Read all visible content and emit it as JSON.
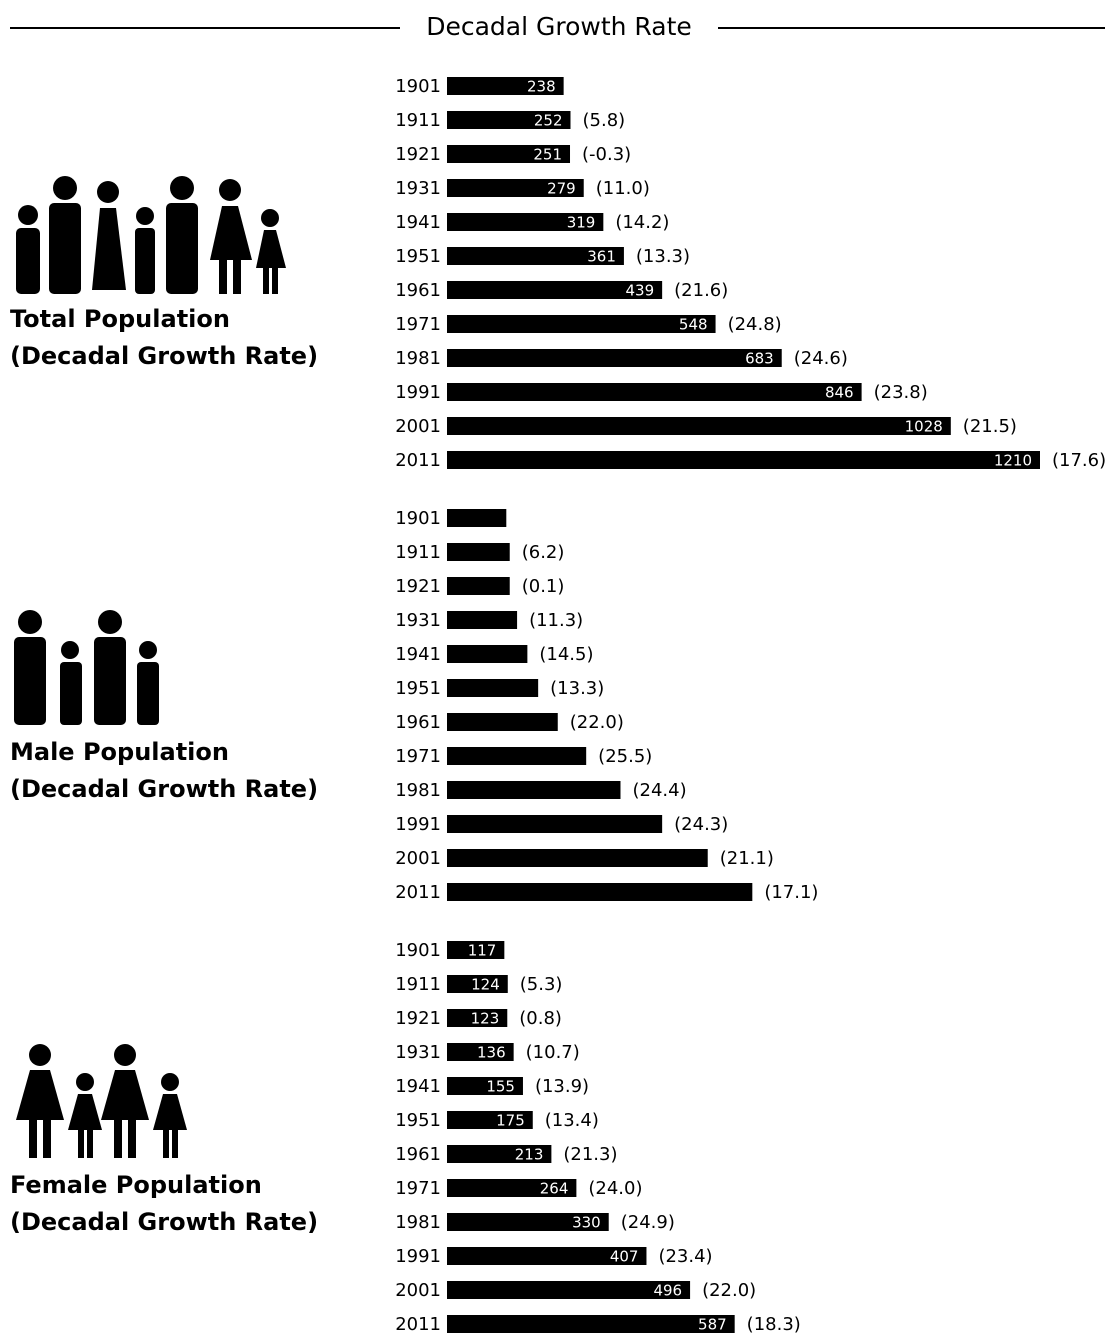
{
  "title": "Decadal Growth Rate",
  "chart_data": [
    {
      "type": "bar",
      "orientation": "horizontal",
      "title": "Total Population",
      "subtitle": "(Decadal Growth Rate)",
      "color": "#000000",
      "xlim": [
        0,
        1210
      ],
      "categories": [
        "1901",
        "1911",
        "1921",
        "1931",
        "1941",
        "1951",
        "1961",
        "1971",
        "1981",
        "1991",
        "2001",
        "2011"
      ],
      "values": [
        238,
        252,
        251,
        279,
        319,
        361,
        439,
        548,
        683,
        846,
        1028,
        1210
      ],
      "value_labels": [
        "238",
        "252",
        "251",
        "279",
        "319",
        "361",
        "439",
        "548",
        "683",
        "846",
        "1028",
        "1210"
      ],
      "growth": [
        null,
        5.8,
        -0.3,
        11.0,
        14.2,
        13.3,
        21.6,
        24.8,
        24.6,
        23.8,
        21.5,
        17.6
      ],
      "growth_labels": [
        null,
        "(5.8)",
        "(-0.3)",
        "(11.0)",
        "(14.2)",
        "(13.3)",
        "(21.6)",
        "(24.8)",
        "(24.6)",
        "(23.8)",
        "(21.5)",
        "(17.6)"
      ]
    },
    {
      "type": "bar",
      "orientation": "horizontal",
      "title": "Male Population",
      "subtitle": "(Decadal Growth Rate)",
      "color": "#000000",
      "xlim": [
        0,
        1210
      ],
      "categories": [
        "1901",
        "1911",
        "1921",
        "1931",
        "1941",
        "1951",
        "1961",
        "1971",
        "1981",
        "1991",
        "2001",
        "2011"
      ],
      "values": [
        121,
        128,
        128,
        143,
        164,
        186,
        226,
        284,
        354,
        439,
        532,
        623
      ],
      "growth": [
        null,
        6.2,
        0.1,
        11.3,
        14.5,
        13.3,
        22.0,
        25.5,
        24.4,
        24.3,
        21.1,
        17.1
      ],
      "growth_labels": [
        null,
        "(6.2)",
        "(0.1)",
        "(11.3)",
        "(14.5)",
        "(13.3)",
        "(22.0)",
        "(25.5)",
        "(24.4)",
        "(24.3)",
        "(21.1)",
        "(17.1)"
      ]
    },
    {
      "type": "bar",
      "orientation": "horizontal",
      "title": "Female Population",
      "subtitle": "(Decadal Growth Rate)",
      "color": "#000000",
      "xlim": [
        0,
        1210
      ],
      "categories": [
        "1901",
        "1911",
        "1921",
        "1931",
        "1941",
        "1951",
        "1961",
        "1971",
        "1981",
        "1991",
        "2001",
        "2011"
      ],
      "values": [
        117,
        124,
        123,
        136,
        155,
        175,
        213,
        264,
        330,
        407,
        496,
        587
      ],
      "value_labels": [
        "117",
        "124",
        "123",
        "136",
        "155",
        "175",
        "213",
        "264",
        "330",
        "407",
        "496",
        "587"
      ],
      "growth": [
        null,
        5.3,
        0.8,
        10.7,
        13.9,
        13.4,
        21.3,
        24.0,
        24.9,
        23.4,
        22.0,
        18.3
      ],
      "growth_labels": [
        null,
        "(5.3)",
        "(0.8)",
        "(10.7)",
        "(13.9)",
        "(13.4)",
        "(21.3)",
        "(24.0)",
        "(24.9)",
        "(23.4)",
        "(22.0)",
        "(18.3)"
      ]
    }
  ]
}
